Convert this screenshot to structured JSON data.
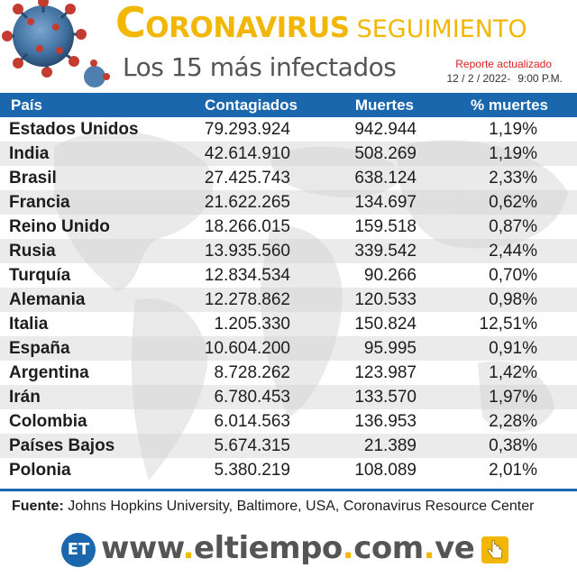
{
  "header": {
    "title_initial": "C",
    "title_rest": "ORONAVIRUS",
    "title_secondary": "SEGUIMIENTO",
    "subtitle": "Los 15 más infectados",
    "report_label": "Reporte actualizado",
    "report_date": "12 / 2 / 2022-",
    "report_time": "9:00 P.M."
  },
  "table": {
    "columns": [
      "País",
      "Contagiados",
      "Muertes",
      "% muertes"
    ],
    "rows": [
      {
        "country": "Estados Unidos",
        "cases": "79.293.924",
        "deaths": "942.944",
        "pct": "1,19%"
      },
      {
        "country": "India",
        "cases": "42.614.910",
        "deaths": "508.269",
        "pct": "1,19%"
      },
      {
        "country": "Brasil",
        "cases": "27.425.743",
        "deaths": "638.124",
        "pct": "2,33%"
      },
      {
        "country": "Francia",
        "cases": "21.622.265",
        "deaths": "134.697",
        "pct": "0,62%"
      },
      {
        "country": "Reino Unido",
        "cases": "18.266.015",
        "deaths": "159.518",
        "pct": "0,87%"
      },
      {
        "country": "Rusia",
        "cases": "13.935.560",
        "deaths": "339.542",
        "pct": "2,44%"
      },
      {
        "country": "Turquía",
        "cases": "12.834.534",
        "deaths": "90.266",
        "pct": "0,70%"
      },
      {
        "country": "Alemania",
        "cases": "12.278.862",
        "deaths": "120.533",
        "pct": "0,98%"
      },
      {
        "country": "Italia",
        "cases": "1.205.330",
        "deaths": "150.824",
        "pct": "12,51%"
      },
      {
        "country": "España",
        "cases": "10.604.200",
        "deaths": "95.995",
        "pct": "0,91%"
      },
      {
        "country": "Argentina",
        "cases": "8.728.262",
        "deaths": "123.987",
        "pct": "1,42%"
      },
      {
        "country": "Irán",
        "cases": "6.780.453",
        "deaths": "133.570",
        "pct": "1,97%"
      },
      {
        "country": "Colombia",
        "cases": "6.014.563",
        "deaths": "136.953",
        "pct": "2,28%"
      },
      {
        "country": "Países Bajos",
        "cases": "5.674.315",
        "deaths": "21.389",
        "pct": "0,38%"
      },
      {
        "country": "Polonia",
        "cases": "5.380.219",
        "deaths": "108.089",
        "pct": "2,01%"
      }
    ]
  },
  "source": {
    "label": "Fuente:",
    "text": "Johns Hopkins University, Baltimore, USA, Coronavirus Resource Center"
  },
  "footer": {
    "logo_text": "ET",
    "url_part1": "www",
    "url_part2": "eltiempo",
    "url_part3": "com",
    "url_part4": "ve",
    "dot": "."
  },
  "colors": {
    "accent_yellow": "#f2b705",
    "header_blue": "#1a67ad",
    "report_red": "#d9231f"
  },
  "icons": [
    "virus-illustration",
    "world-map-background",
    "et-logo",
    "click-hand-icon"
  ]
}
